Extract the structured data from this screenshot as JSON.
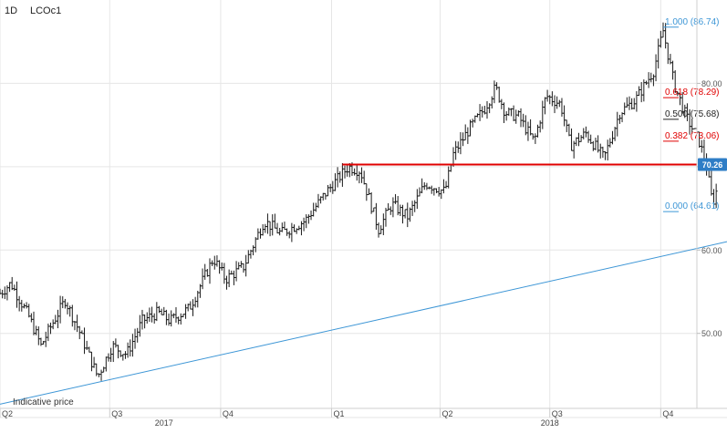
{
  "header": {
    "timeframe": "1D",
    "symbol": "LCOc1"
  },
  "footer_note": "Indicative price",
  "colors": {
    "candles": "#1a1a1a",
    "support_line": "#e00000",
    "trendline": "#3d96d6",
    "fib_blue": "#3d96d6",
    "fib_red": "#e00000",
    "fib_black": "#222222",
    "last_price_badge": "#2e7dc6",
    "grid": "#e6e6e6"
  },
  "chart_data": {
    "type": "ohlc",
    "x_domain": [
      "2017-04-01",
      "2018-10-31"
    ],
    "ylim": [
      41,
      90
    ],
    "y_ticks": [
      50.0,
      60.0,
      70.0,
      80.0
    ],
    "y_tick_labels": [
      "50.00",
      "60.00",
      "70.00",
      "80.00"
    ],
    "x_quarter_labels": [
      {
        "label": "Q2",
        "date": "2017-04-01"
      },
      {
        "label": "Q3",
        "date": "2017-07-01"
      },
      {
        "label": "Q4",
        "date": "2017-10-01"
      },
      {
        "label": "Q1",
        "date": "2018-01-01"
      },
      {
        "label": "Q2",
        "date": "2018-04-01"
      },
      {
        "label": "Q3",
        "date": "2018-07-01"
      },
      {
        "label": "Q4",
        "date": "2018-10-01"
      }
    ],
    "x_year_labels": [
      {
        "label": "2017",
        "date": "2017-08-15"
      },
      {
        "label": "2018",
        "date": "2018-07-01"
      }
    ],
    "price_path": [
      [
        "2017-04-01",
        54.8
      ],
      [
        "2017-04-10",
        56.0
      ],
      [
        "2017-04-25",
        52.0
      ],
      [
        "2017-05-05",
        48.5
      ],
      [
        "2017-05-12",
        50.5
      ],
      [
        "2017-05-25",
        54.0
      ],
      [
        "2017-06-05",
        50.5
      ],
      [
        "2017-06-21",
        44.8
      ],
      [
        "2017-07-03",
        48.5
      ],
      [
        "2017-07-15",
        47.5
      ],
      [
        "2017-07-28",
        51.5
      ],
      [
        "2017-08-10",
        52.5
      ],
      [
        "2017-08-20",
        51.5
      ],
      [
        "2017-09-05",
        53.0
      ],
      [
        "2017-09-25",
        59.0
      ],
      [
        "2017-10-05",
        56.5
      ],
      [
        "2017-10-20",
        58.0
      ],
      [
        "2017-11-06",
        63.5
      ],
      [
        "2017-11-20",
        62.0
      ],
      [
        "2017-12-10",
        63.5
      ],
      [
        "2017-12-28",
        67.0
      ],
      [
        "2018-01-15",
        70.0
      ],
      [
        "2018-01-25",
        69.5
      ],
      [
        "2018-02-09",
        62.5
      ],
      [
        "2018-02-20",
        65.5
      ],
      [
        "2018-03-05",
        64.0
      ],
      [
        "2018-03-20",
        68.0
      ],
      [
        "2018-04-05",
        67.0
      ],
      [
        "2018-04-12",
        71.5
      ],
      [
        "2018-04-25",
        74.5
      ],
      [
        "2018-05-08",
        77.0
      ],
      [
        "2018-05-17",
        79.5
      ],
      [
        "2018-05-25",
        76.5
      ],
      [
        "2018-06-05",
        76.0
      ],
      [
        "2018-06-18",
        73.0
      ],
      [
        "2018-06-28",
        78.5
      ],
      [
        "2018-07-10",
        77.5
      ],
      [
        "2018-07-18",
        72.5
      ],
      [
        "2018-07-31",
        74.0
      ],
      [
        "2018-08-15",
        71.0
      ],
      [
        "2018-08-28",
        76.5
      ],
      [
        "2018-09-10",
        78.0
      ],
      [
        "2018-09-25",
        81.5
      ],
      [
        "2018-10-03",
        86.3
      ],
      [
        "2018-10-12",
        80.0
      ],
      [
        "2018-10-22",
        76.0
      ],
      [
        "2018-11-02",
        73.0
      ],
      [
        "2018-11-08",
        70.0
      ],
      [
        "2018-11-13",
        65.5
      ],
      [
        "2018-11-16",
        67.0
      ]
    ],
    "support_line": {
      "value": 70.26,
      "start": "2018-01-10",
      "end": "2018-11-20"
    },
    "trendline": {
      "start": {
        "date": "2017-04-01",
        "value": 41.5
      },
      "end": {
        "date": "2018-12-05",
        "value": 61.0
      }
    },
    "last_price": {
      "label": "70.26",
      "value": 70.26
    },
    "fib_levels": [
      {
        "label": "1.000 (86.74)",
        "value": 86.74,
        "tone": "blue"
      },
      {
        "label": "0.618 (78.29)",
        "value": 78.29,
        "tone": "red"
      },
      {
        "label": "0.500 (75.68)",
        "value": 75.68,
        "tone": "black"
      },
      {
        "label": "0.382 (73.06)",
        "value": 73.06,
        "tone": "red"
      },
      {
        "label": "0.000 (64.61)",
        "value": 64.61,
        "tone": "blue"
      }
    ]
  }
}
